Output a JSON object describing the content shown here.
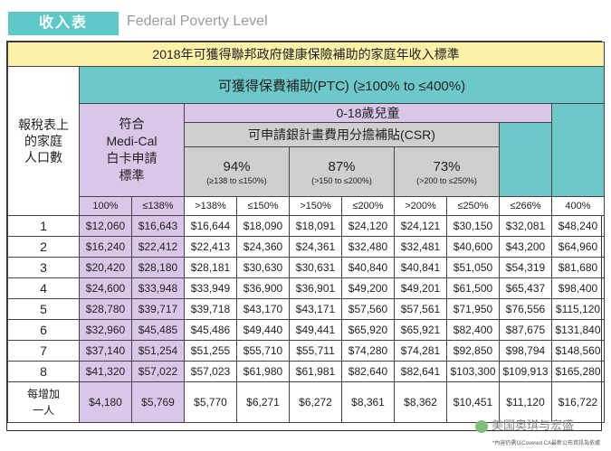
{
  "header": {
    "tab_label": "收入表",
    "subtitle": "Federal Poverty Level"
  },
  "table": {
    "title": "2018年可獲得聯邦政府健康保險補助的家庭年收入標準",
    "row_header": [
      "報稅表上",
      "的家庭",
      "人口數"
    ],
    "ptc_label": "可獲得保費補助(PTC) (≥100% to ≤400%)",
    "age_label": "0-18歲兒童",
    "csr_label": "可申請銀計畫費用分擔補貼(CSR)",
    "medical_label": [
      "符合",
      "Medi-Cal",
      "白卡申請",
      "標準"
    ],
    "csr_groups": [
      {
        "pct": "94%",
        "range": "(≥138 to ≤150%)"
      },
      {
        "pct": "87%",
        "range": "(>150 to ≤200%)"
      },
      {
        "pct": "73%",
        "range": "(>200 to ≤250%)"
      }
    ],
    "sub_headers": [
      "100%",
      "≤138%",
      ">138%",
      "≤150%",
      ">150%",
      "≤200%",
      ">200%",
      "≤250%",
      "≤266%",
      "400%"
    ],
    "rows": [
      {
        "n": "1",
        "v": [
          "$12,060",
          "$16,643",
          "$16,644",
          "$18,090",
          "$18,091",
          "$24,120",
          "$24,121",
          "$30,150",
          "$32,081",
          "$48,240"
        ]
      },
      {
        "n": "2",
        "v": [
          "$16,240",
          "$22,412",
          "$22,413",
          "$24,360",
          "$24,361",
          "$32,480",
          "$32,481",
          "$40,600",
          "$43,200",
          "$64,960"
        ]
      },
      {
        "n": "3",
        "v": [
          "$20,420",
          "$28,180",
          "$28,181",
          "$30,630",
          "$30,631",
          "$40,840",
          "$40,841",
          "$51,050",
          "$54,319",
          "$81,680"
        ]
      },
      {
        "n": "4",
        "v": [
          "$24,600",
          "$33,948",
          "$33,949",
          "$36,900",
          "$36,901",
          "$49,200",
          "$49,201",
          "$61,500",
          "$65,437",
          "$98,400"
        ]
      },
      {
        "n": "5",
        "v": [
          "$28,780",
          "$39,717",
          "$39,718",
          "$43,170",
          "$43,171",
          "$57,560",
          "$57,561",
          "$71,950",
          "$76,556",
          "$115,120"
        ]
      },
      {
        "n": "6",
        "v": [
          "$32,960",
          "$45,485",
          "$45,486",
          "$49,440",
          "$49,441",
          "$65,920",
          "$65,921",
          "$82,400",
          "$87,675",
          "$131,840"
        ]
      },
      {
        "n": "7",
        "v": [
          "$37,140",
          "$51,254",
          "$51,255",
          "$55,710",
          "$55,711",
          "$74,280",
          "$74,281",
          "$92,850",
          "$98,794",
          "$148,560"
        ]
      },
      {
        "n": "8",
        "v": [
          "$41,320",
          "$57,022",
          "$57,023",
          "$61,980",
          "$61,981",
          "$82,640",
          "$82,641",
          "$103,300",
          "$109,913",
          "$165,280"
        ]
      }
    ],
    "last_row": {
      "label": [
        "每增加",
        "一人"
      ],
      "v": [
        "$4,180",
        "$5,769",
        "$5,770",
        "$6,271",
        "$6,272",
        "$8,361",
        "$8,362",
        "$10,451",
        "$11,120",
        "$16,722"
      ]
    }
  },
  "watermark": "美国奥琪与宏盛",
  "footnote": "*內容仍需以Covered CA最新公布資訊為依據",
  "colors": {
    "teal": "#6dc9c9",
    "purple": "#d9c6e8",
    "gray": "#cfcfcf",
    "yellow": "#fdf1a8"
  }
}
